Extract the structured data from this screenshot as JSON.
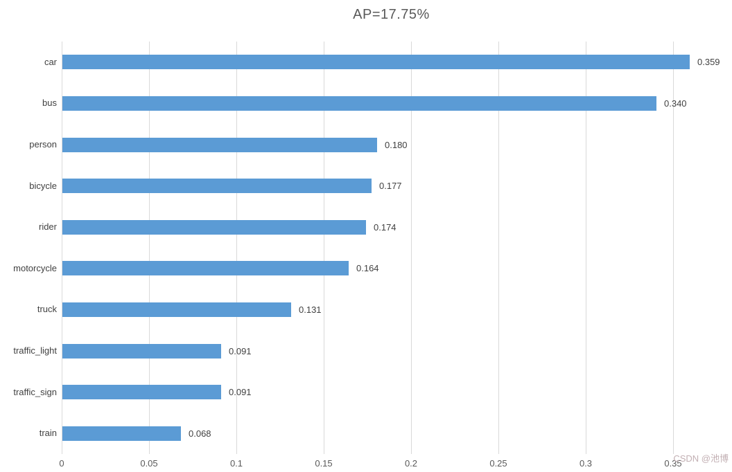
{
  "title": "AP=17.75%",
  "watermark": "CSDN @池博",
  "colors": {
    "bar": "#5b9bd5",
    "grid": "#d9d9d9",
    "title_text": "#595959",
    "label_text": "#404040",
    "tick_text": "#595959",
    "watermark_text": "#c2afb3",
    "background": "#ffffff"
  },
  "chart_data": {
    "type": "bar",
    "orientation": "horizontal",
    "title": "AP=17.75%",
    "xlabel": "",
    "ylabel": "",
    "categories": [
      "car",
      "bus",
      "person",
      "bicycle",
      "rider",
      "motorcycle",
      "truck",
      "traffic_light",
      "traffic_sign",
      "train"
    ],
    "values": [
      0.359,
      0.34,
      0.18,
      0.177,
      0.174,
      0.164,
      0.131,
      0.091,
      0.091,
      0.068
    ],
    "value_labels": [
      "0.359",
      "0.340",
      "0.180",
      "0.177",
      "0.174",
      "0.164",
      "0.131",
      "0.091",
      "0.091",
      "0.068"
    ],
    "xlim": [
      0,
      0.3774
    ],
    "xticks": [
      0,
      0.05,
      0.1,
      0.15,
      0.2,
      0.25,
      0.3,
      0.35
    ],
    "xtick_labels": [
      "0",
      "0.05",
      "0.1",
      "0.15",
      "0.2",
      "0.25",
      "0.3",
      "0.35"
    ],
    "grid": true,
    "legend": false
  }
}
